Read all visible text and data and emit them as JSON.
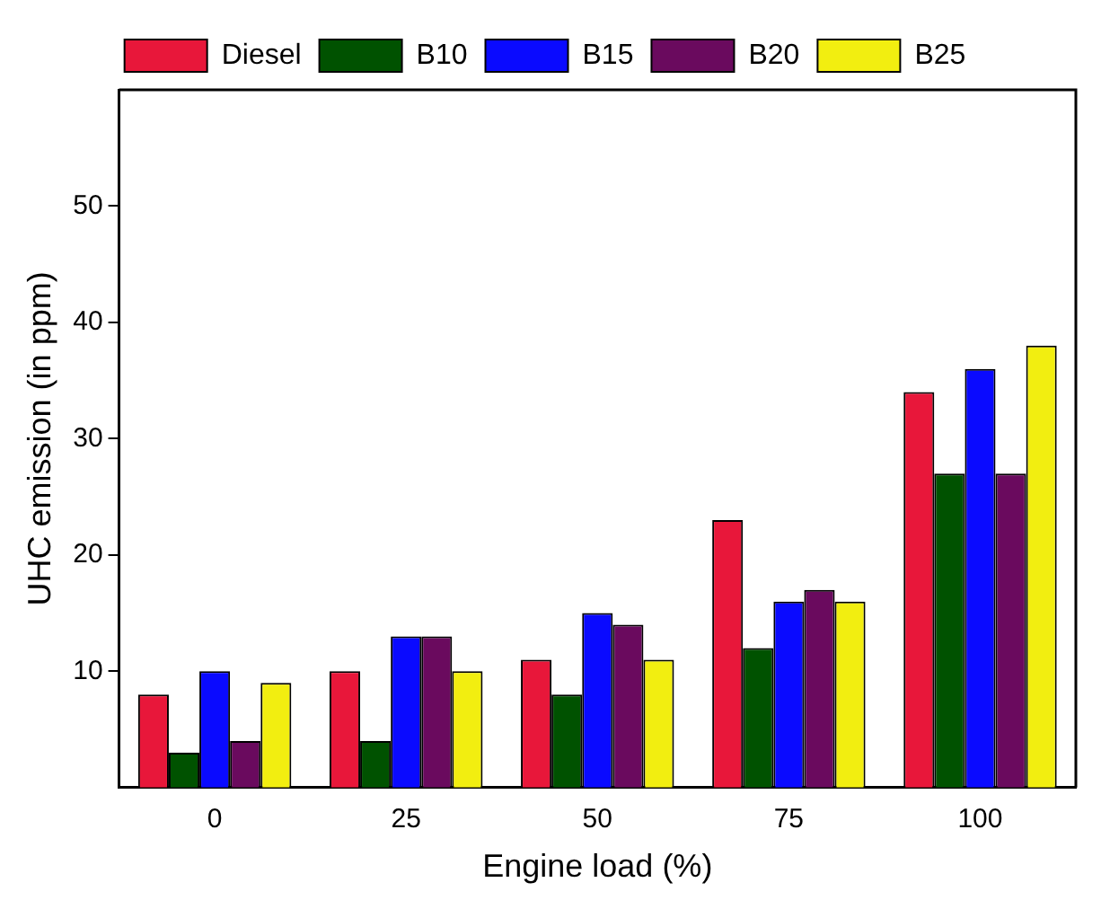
{
  "chart_data": {
    "type": "bar",
    "xlabel": "Engine load (%)",
    "ylabel": "UHC emission (in ppm)",
    "categories": [
      "0",
      "25",
      "50",
      "75",
      "100"
    ],
    "series": [
      {
        "name": "Diesel",
        "color": "#e8173a",
        "values": [
          8,
          10,
          11,
          23,
          34
        ]
      },
      {
        "name": "B10",
        "color": "#005200",
        "values": [
          3,
          4,
          8,
          12,
          27
        ]
      },
      {
        "name": "B15",
        "color": "#0a0aff",
        "values": [
          10,
          13,
          15,
          16,
          36
        ]
      },
      {
        "name": "B20",
        "color": "#6a0a5e",
        "values": [
          4,
          13,
          14,
          17,
          27
        ]
      },
      {
        "name": "B25",
        "color": "#f2ee10",
        "values": [
          9,
          10,
          11,
          16,
          38
        ]
      }
    ],
    "ylim": [
      0,
      60
    ],
    "yticks": [
      10,
      20,
      30,
      40,
      50
    ],
    "grid": false,
    "legend": "top"
  }
}
